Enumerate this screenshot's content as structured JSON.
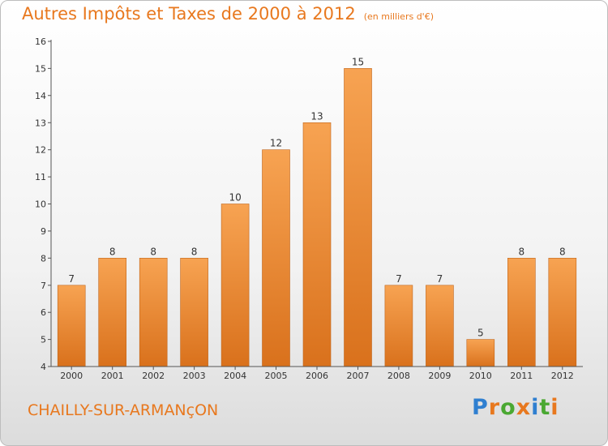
{
  "header": {
    "title": "Autres Impôts et Taxes de 2000 à 2012",
    "subtitle": "(en milliers d'€)"
  },
  "footer": {
    "commune": "CHAILLY-SUR-ARMANçON",
    "brand": "Proxiti",
    "brand_letters": [
      {
        "ch": "P",
        "color": "#2f7fd0"
      },
      {
        "ch": "r",
        "color": "#e8781e"
      },
      {
        "ch": "o",
        "color": "#4aa832"
      },
      {
        "ch": "x",
        "color": "#e8781e"
      },
      {
        "ch": "i",
        "color": "#2f7fd0"
      },
      {
        "ch": "t",
        "color": "#4aa832"
      },
      {
        "ch": "i",
        "color": "#e8781e"
      }
    ]
  },
  "chart_data": {
    "type": "bar",
    "title": "Autres Impôts et Taxes de 2000 à 2012",
    "subtitle": "(en milliers d'€)",
    "categories": [
      "2000",
      "2001",
      "2002",
      "2003",
      "2004",
      "2005",
      "2006",
      "2007",
      "2008",
      "2009",
      "2010",
      "2011",
      "2012"
    ],
    "values": [
      7,
      8,
      8,
      8,
      10,
      12,
      13,
      15,
      7,
      7,
      5,
      8,
      8
    ],
    "ylim": [
      4,
      16
    ],
    "yticks": [
      4,
      5,
      6,
      7,
      8,
      9,
      10,
      11,
      12,
      13,
      14,
      15,
      16
    ],
    "grid": false,
    "legend": "none",
    "colors": {
      "bar_top": "#f7a352",
      "bar_bottom": "#d9711c",
      "bar_edge": "#c0651a",
      "axis": "#555555",
      "text": "#333333"
    }
  }
}
